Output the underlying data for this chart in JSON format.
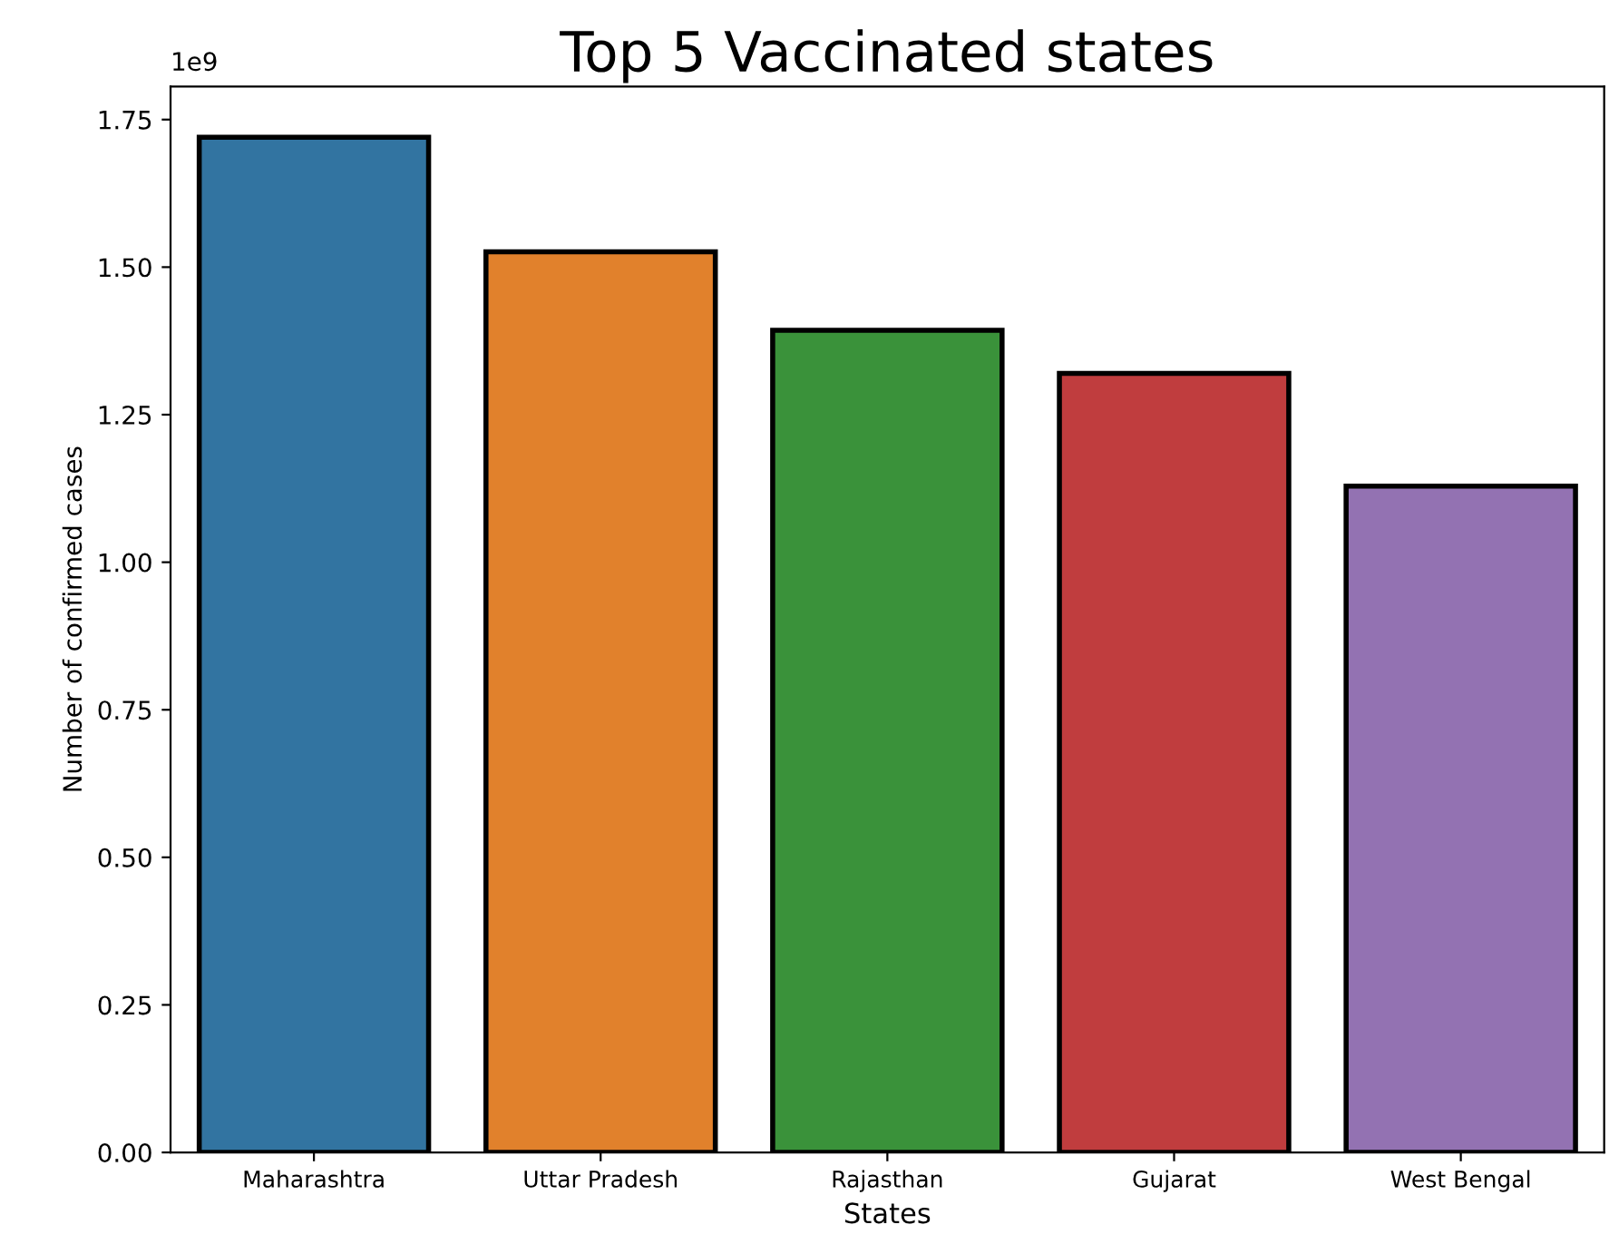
{
  "chart_data": {
    "type": "bar",
    "title": "Top 5 Vaccinated states",
    "xlabel": "States",
    "ylabel": "Number of confirmed cases",
    "categories": [
      "Maharashtra",
      "Uttar Pradesh",
      "Rajasthan",
      "Gujarat",
      "West Bengal"
    ],
    "values": [
      1.72,
      1.526,
      1.393,
      1.32,
      1.129
    ],
    "colors": [
      "#3274a1",
      "#e1812c",
      "#3a923a",
      "#c03d3e",
      "#9372b2"
    ],
    "ylim": [
      0,
      1.806
    ],
    "yticks": [
      {
        "value": 0,
        "label": "0.00"
      },
      {
        "value": 0.25,
        "label": "0.25"
      },
      {
        "value": 0.5,
        "label": "0.50"
      },
      {
        "value": 0.75,
        "label": "0.75"
      },
      {
        "value": 1,
        "label": "1.00"
      },
      {
        "value": 1.25,
        "label": "1.25"
      },
      {
        "value": 1.5,
        "label": "1.50"
      },
      {
        "value": 1.75,
        "label": "1.75"
      }
    ],
    "annotations": [
      "1e9"
    ],
    "grid": false,
    "legend": false
  }
}
